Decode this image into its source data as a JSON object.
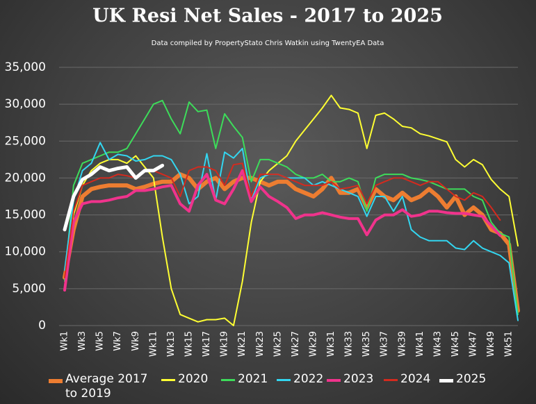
{
  "chart_data": {
    "type": "line",
    "title": "UK  Resi Net Sales - 2017 to 2025",
    "subtitle": "Data compiled by PropertyStato Chris Watkin using TwentyEA Data",
    "categories": [
      "Wk1",
      null,
      "Wk3",
      null,
      "Wk5",
      null,
      "Wk7",
      null,
      "Wk9",
      null,
      "Wk11",
      null,
      "Wk13",
      null,
      "Wk15",
      null,
      "Wk17",
      null,
      "Wk19",
      null,
      "Wk21",
      null,
      "Wk23",
      null,
      "Wk25",
      null,
      "Wk27",
      null,
      "Wk29",
      null,
      "Wk31",
      null,
      "Wk33",
      null,
      "Wk35",
      null,
      "Wk37",
      null,
      "Wk39",
      null,
      "Wk41",
      null,
      "Wk43",
      null,
      "Wk45",
      null,
      "Wk47",
      null,
      "Wk49",
      null,
      "Wk51",
      null
    ],
    "ylim": [
      0,
      35000
    ],
    "yticks": [
      0,
      {
        "value": 5000,
        "label": "5,000"
      },
      {
        "value": 10000,
        "label": "10,000"
      },
      {
        "value": 15000,
        "label": "15,000"
      },
      {
        "value": 20000,
        "label": "20,000"
      },
      {
        "value": 25000,
        "label": "25,000"
      },
      {
        "value": 30000,
        "label": "30,000"
      },
      {
        "value": 35000,
        "label": "35,000"
      }
    ],
    "grid": true,
    "legend": "bottom",
    "series": [
      {
        "name": "Average 2017 to 2019",
        "color": "#ed7d31",
        "width": 6,
        "values": [
          6500,
          13000,
          17500,
          18500,
          18800,
          19000,
          19000,
          19000,
          18500,
          18800,
          19200,
          19500,
          19500,
          20500,
          20000,
          18500,
          19500,
          20000,
          18500,
          19500,
          20000,
          20000,
          19500,
          19000,
          19500,
          19500,
          18500,
          18000,
          17500,
          18500,
          20000,
          18000,
          18000,
          18500,
          16000,
          18500,
          17500,
          17000,
          18000,
          17000,
          17500,
          18500,
          17500,
          16000,
          17500,
          15000,
          16000,
          15000,
          13000,
          12500,
          11000,
          2000
        ]
      },
      {
        "name": "2020",
        "color": "#ffff33",
        "width": 2,
        "values": [
          6500,
          15000,
          19000,
          21000,
          22000,
          22500,
          22500,
          22000,
          23000,
          21500,
          20000,
          12000,
          5000,
          1500,
          1000,
          500,
          800,
          800,
          1000,
          0,
          6000,
          14000,
          19500,
          21000,
          22000,
          23000,
          25000,
          26500,
          28000,
          29500,
          31200,
          29500,
          29300,
          28800,
          24000,
          28500,
          28800,
          28000,
          27000,
          26800,
          26000,
          25700,
          25300,
          24900,
          22500,
          21500,
          22500,
          21800,
          19800,
          18500,
          17500,
          10800
        ]
      },
      {
        "name": "2021",
        "color": "#3ddc5a",
        "width": 2,
        "values": [
          6000,
          19000,
          22000,
          22500,
          23000,
          23500,
          23500,
          24000,
          26000,
          28000,
          30000,
          30500,
          28000,
          26000,
          30300,
          29000,
          29200,
          24000,
          28700,
          27000,
          25500,
          19500,
          22500,
          22500,
          22000,
          21500,
          20500,
          20000,
          20000,
          20500,
          19500,
          19500,
          20000,
          19500,
          15500,
          20000,
          20500,
          20500,
          20500,
          20000,
          19800,
          19500,
          19000,
          18500,
          18500,
          18500,
          17500,
          17000,
          14000,
          12500,
          12000,
          1500
        ]
      },
      {
        "name": "2022",
        "color": "#33d6f0",
        "width": 2,
        "values": [
          7500,
          17000,
          21000,
          22000,
          24800,
          22500,
          23200,
          23000,
          22300,
          22500,
          23000,
          23000,
          22500,
          20500,
          16500,
          17500,
          23300,
          17000,
          23500,
          22700,
          24000,
          17000,
          20000,
          20500,
          20500,
          20000,
          20000,
          20000,
          19000,
          19500,
          19000,
          18500,
          18000,
          17500,
          14800,
          17500,
          17500,
          15500,
          17500,
          13000,
          12000,
          11500,
          11500,
          11500,
          10500,
          10300,
          11500,
          10500,
          10000,
          9500,
          8500,
          700
        ]
      },
      {
        "name": "2023",
        "color": "#f0338c",
        "width": 4,
        "values": [
          4800,
          14000,
          16500,
          16800,
          16800,
          17000,
          17300,
          17500,
          18300,
          18300,
          18500,
          18800,
          19000,
          16500,
          15500,
          19000,
          20500,
          17000,
          16500,
          18500,
          21000,
          16800,
          18800,
          17500,
          16800,
          16000,
          14500,
          15000,
          15000,
          15300,
          15000,
          14700,
          14500,
          14500,
          12300,
          14300,
          15000,
          15000,
          15700,
          14800,
          15000,
          15500,
          15500,
          15300,
          15200,
          15200,
          15000,
          14800,
          13500,
          12200,
          null,
          null
        ]
      },
      {
        "name": "2024",
        "color": "#d42a1e",
        "width": 2,
        "values": [
          6500,
          15500,
          19000,
          19500,
          20000,
          20000,
          20500,
          20300,
          20000,
          21000,
          21000,
          20500,
          20000,
          17500,
          21000,
          21500,
          21500,
          21000,
          19000,
          21800,
          22000,
          17500,
          20500,
          20500,
          20500,
          20000,
          19500,
          19000,
          19000,
          19000,
          19500,
          18500,
          18700,
          19000,
          16500,
          19000,
          19500,
          20000,
          20000,
          19500,
          19000,
          19500,
          19500,
          18500,
          17500,
          17000,
          18000,
          17500,
          16000,
          14300,
          null,
          null
        ]
      },
      {
        "name": "2025",
        "color": "#ffffff",
        "width": 5,
        "values": [
          13000,
          17500,
          19800,
          20500,
          21500,
          21000,
          21300,
          21500,
          20000,
          21000,
          21000,
          21700,
          null,
          null,
          null,
          null,
          null,
          null,
          null,
          null,
          null,
          null,
          null,
          null,
          null,
          null,
          null,
          null,
          null,
          null,
          null,
          null,
          null,
          null,
          null,
          null,
          null,
          null,
          null,
          null,
          null,
          null,
          null,
          null,
          null,
          null,
          null,
          null,
          null,
          null,
          null,
          null
        ]
      }
    ]
  }
}
